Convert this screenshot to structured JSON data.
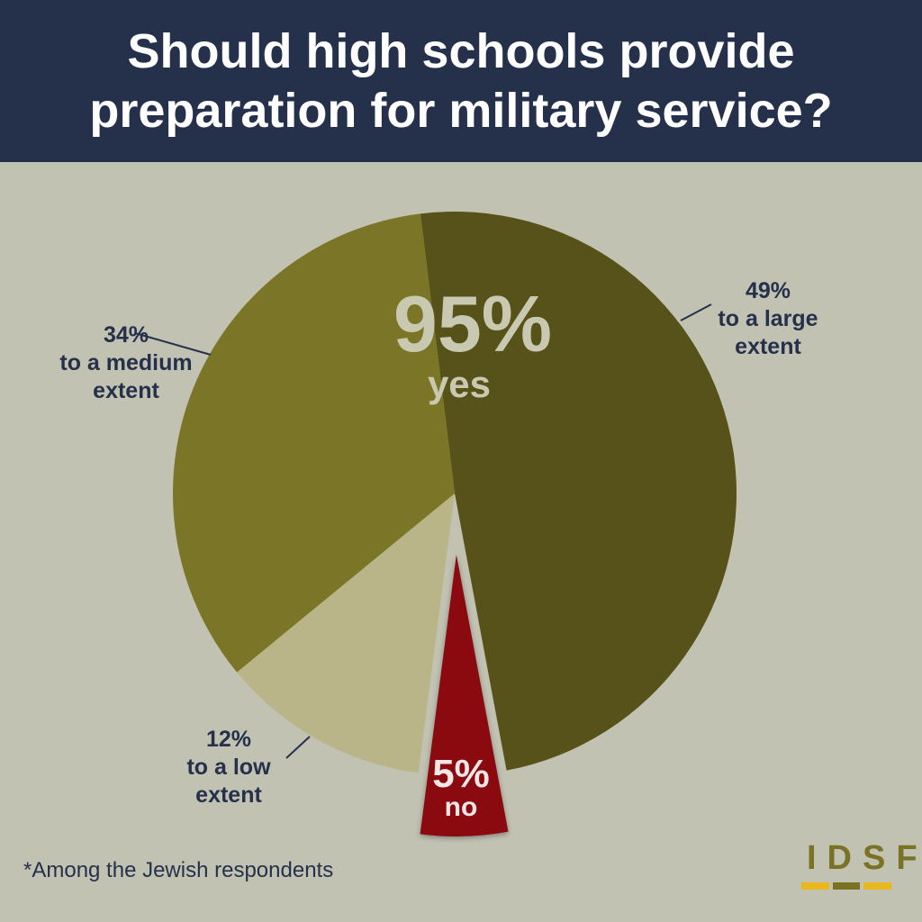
{
  "header": {
    "title_line1": "Should high schools provide",
    "title_line2": "preparation for military service?"
  },
  "colors": {
    "header_bg": "#25314b",
    "background": "#c2c2b3",
    "large": "#575219",
    "medium": "#7a7527",
    "low": "#b9b588",
    "no": "#8a0a10",
    "label_text": "#25314b",
    "logo_gold": "#7a7325",
    "logo_yellow": "#e8b81c"
  },
  "chart_data": {
    "type": "pie",
    "title": "Should high schools provide preparation for military service?",
    "slices": [
      {
        "label": "to a large extent",
        "value": 49,
        "display": "49%"
      },
      {
        "label": "to a low extent",
        "value": 12,
        "display": "12%"
      },
      {
        "label": "to a medium extent",
        "value": 34,
        "display": "34%"
      },
      {
        "label": "no",
        "value": 5,
        "display": "5%",
        "exploded": true
      }
    ],
    "summary": {
      "value": "95%",
      "label": "yes"
    }
  },
  "labels": {
    "large": {
      "pct": "49%",
      "line1": "to a large",
      "line2": "extent"
    },
    "medium": {
      "pct": "34%",
      "line1": "to a medium",
      "line2": "extent"
    },
    "low": {
      "pct": "12%",
      "line1": "to a low",
      "line2": "extent"
    },
    "no": {
      "pct": "5%",
      "word": "no"
    },
    "yes": {
      "pct": "95%",
      "word": "yes"
    }
  },
  "footnote": "*Among the Jewish respondents",
  "logo": {
    "text": "IDSF",
    "bar_colors": [
      "#e8b81c",
      "#7a7325",
      "#e8b81c"
    ]
  }
}
